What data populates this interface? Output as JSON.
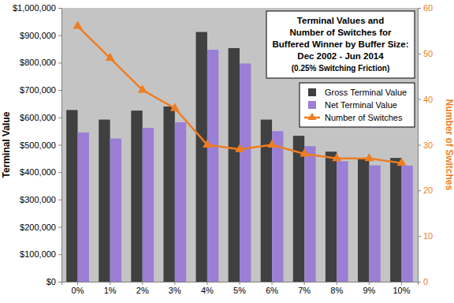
{
  "chart_data": {
    "type": "bar",
    "title": [
      "Terminal Values and",
      "Number of Switches for",
      "Buffered Winner by Buffer Size:",
      "Dec 2002 - Jun 2014"
    ],
    "subtitle": "(0.25% Switching Friction)",
    "y_label": "Terminal Value",
    "y2_label": "Number of Switches",
    "categories": [
      "0%",
      "1%",
      "2%",
      "3%",
      "4%",
      "5%",
      "6%",
      "7%",
      "8%",
      "9%",
      "10%"
    ],
    "series": [
      {
        "name": "Gross Terminal Value",
        "type": "bar",
        "color": "#404040",
        "values": [
          627000,
          592000,
          625000,
          640000,
          912000,
          853000,
          592000,
          533000,
          475000,
          447000,
          452000
        ]
      },
      {
        "name": "Net Terminal Value",
        "type": "bar",
        "color": "#9b7fd4",
        "values": [
          545000,
          523000,
          562000,
          582000,
          847000,
          797000,
          550000,
          495000,
          440000,
          425000,
          424000
        ]
      },
      {
        "name": "Number of Switches",
        "type": "line",
        "axis": "y2",
        "color": "#ef7d22",
        "marker": "triangle",
        "line_style": "solid",
        "values": [
          56,
          49,
          42,
          38,
          30,
          29,
          30,
          28,
          27,
          27,
          26
        ]
      }
    ],
    "ylim": [
      0,
      1000000
    ],
    "yticks": [
      {
        "value": 0,
        "label": "$0"
      },
      {
        "value": 100000,
        "label": "$100,000"
      },
      {
        "value": 200000,
        "label": "$200,000"
      },
      {
        "value": 300000,
        "label": "$300,000"
      },
      {
        "value": 400000,
        "label": "$400,000"
      },
      {
        "value": 500000,
        "label": "$500,000"
      },
      {
        "value": 600000,
        "label": "$600,000"
      },
      {
        "value": 700000,
        "label": "$700,000"
      },
      {
        "value": 800000,
        "label": "$800,000"
      },
      {
        "value": 900000,
        "label": "$900,000"
      },
      {
        "value": 1000000,
        "label": "$1,000,000"
      }
    ],
    "y2lim": [
      0,
      60
    ],
    "y2ticks": [
      0,
      10,
      20,
      30,
      40,
      50,
      60
    ],
    "grid": false,
    "legend": "right"
  }
}
